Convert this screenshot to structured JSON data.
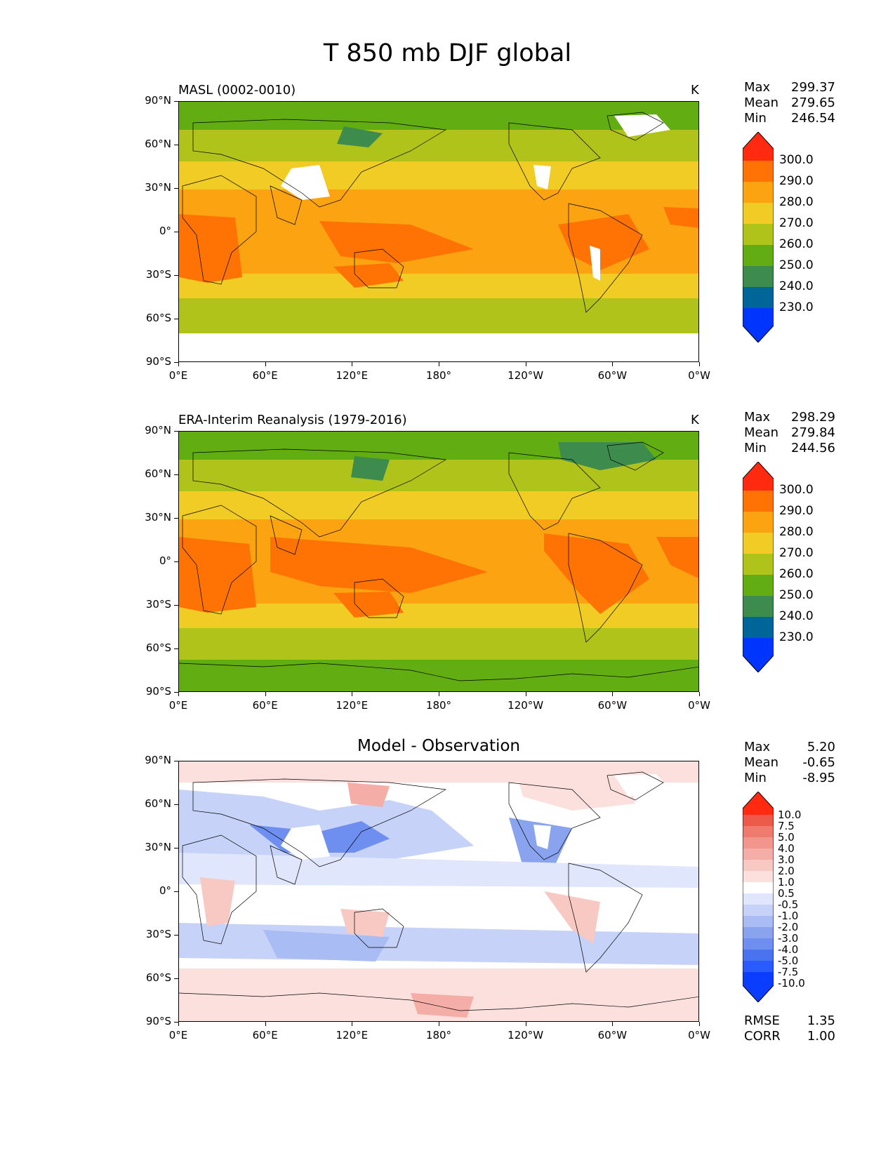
{
  "figure": {
    "title": "T 850 mb DJF global"
  },
  "axes": {
    "lat_ticks": [
      "90°N",
      "60°N",
      "30°N",
      "0°",
      "30°S",
      "60°S",
      "90°S"
    ],
    "lon_ticks": [
      "0°E",
      "60°E",
      "120°E",
      "180°",
      "120°W",
      "60°W",
      "0°W"
    ]
  },
  "panels": [
    {
      "id": "model",
      "title": "MASL (0002-0010)",
      "units": "K",
      "stats": [
        {
          "label": "Max",
          "value": "299.37"
        },
        {
          "label": "Mean",
          "value": "279.65"
        },
        {
          "label": "Min",
          "value": "246.54"
        }
      ],
      "colorbar_labels": [
        "300.0",
        "290.0",
        "280.0",
        "270.0",
        "260.0",
        "250.0",
        "240.0",
        "230.0"
      ]
    },
    {
      "id": "obs",
      "title": "ERA-Interim Reanalysis (1979-2016)",
      "units": "K",
      "stats": [
        {
          "label": "Max",
          "value": "298.29"
        },
        {
          "label": "Mean",
          "value": "279.84"
        },
        {
          "label": "Min",
          "value": "244.56"
        }
      ],
      "colorbar_labels": [
        "300.0",
        "290.0",
        "280.0",
        "270.0",
        "260.0",
        "250.0",
        "240.0",
        "230.0"
      ]
    },
    {
      "id": "diff",
      "title": "Model - Observation",
      "units": "",
      "stats": [
        {
          "label": "Max",
          "value": "5.20"
        },
        {
          "label": "Mean",
          "value": "-0.65"
        },
        {
          "label": "Min",
          "value": "-8.95"
        }
      ],
      "colorbar_labels": [
        "10.0",
        "7.5",
        "5.0",
        "4.0",
        "3.0",
        "2.0",
        "1.0",
        "0.5",
        "-0.5",
        "-1.0",
        "-2.0",
        "-3.0",
        "-4.0",
        "-5.0",
        "-7.5",
        "-10.0"
      ],
      "extra_stats": [
        {
          "label": "RMSE",
          "value": "1.35"
        },
        {
          "label": "CORR",
          "value": "1.00"
        }
      ]
    }
  ],
  "colors": {
    "temp_bins": [
      "#0034ff",
      "#006699",
      "#3e8b4e",
      "#62ad12",
      "#afc31b",
      "#f1cc24",
      "#fca311",
      "#ff7305",
      "#ff2a10"
    ],
    "diff_bins": [
      "#0a3dff",
      "#2a5bff",
      "#4a73f0",
      "#6e8ef0",
      "#8aa3ee",
      "#a9bdf4",
      "#c6d2f7",
      "#e0e6fb",
      "#ffffff",
      "#fbe0dd",
      "#f8c8c3",
      "#f5aea7",
      "#f2958c",
      "#ef7a6e",
      "#ec5a4a",
      "#ff2a10"
    ]
  }
}
